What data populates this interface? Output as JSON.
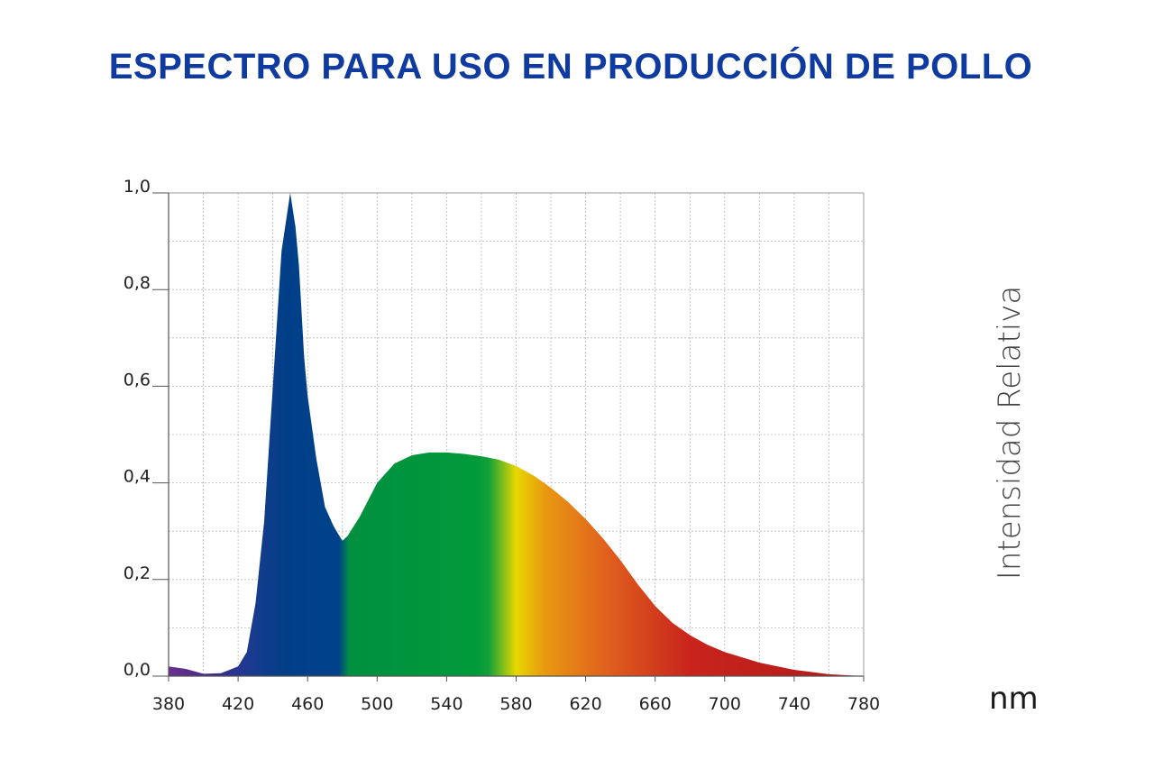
{
  "title": "ESPECTRO PARA USO EN PRODUCCIÓN DE POLLO",
  "chart_data": {
    "type": "area",
    "title": "ESPECTRO PARA USO EN PRODUCCIÓN DE POLLO",
    "xlabel": "nm",
    "ylabel": "Intensidad Relativa",
    "xlim": [
      380,
      780
    ],
    "ylim": [
      0,
      1.0
    ],
    "grid": true,
    "x_ticks": [
      380,
      420,
      460,
      500,
      540,
      580,
      620,
      660,
      700,
      740,
      780
    ],
    "y_ticks": [
      0.0,
      0.2,
      0.4,
      0.6,
      0.8,
      1.0
    ],
    "x_tick_labels": [
      "380",
      "420",
      "460",
      "500",
      "540",
      "580",
      "620",
      "660",
      "700",
      "740",
      "780"
    ],
    "y_tick_labels": [
      "0,0",
      "0,2",
      "0,4",
      "0,6",
      "0,8",
      "1,0"
    ],
    "series": [
      {
        "x": [
          380,
          390,
          400,
          410,
          420,
          425,
          430,
          435,
          440,
          445,
          450,
          453,
          455,
          458,
          460,
          465,
          470,
          475,
          480,
          483,
          490,
          500,
          510,
          520,
          530,
          540,
          550,
          560,
          570,
          580,
          590,
          600,
          610,
          620,
          630,
          640,
          650,
          660,
          670,
          680,
          690,
          700,
          720,
          740,
          760,
          780
        ],
        "values": [
          0.02,
          0.015,
          0.005,
          0.006,
          0.02,
          0.05,
          0.15,
          0.32,
          0.6,
          0.88,
          1.0,
          0.93,
          0.85,
          0.66,
          0.58,
          0.45,
          0.35,
          0.31,
          0.28,
          0.29,
          0.33,
          0.4,
          0.44,
          0.457,
          0.463,
          0.463,
          0.46,
          0.455,
          0.448,
          0.435,
          0.415,
          0.39,
          0.36,
          0.325,
          0.285,
          0.24,
          0.19,
          0.145,
          0.11,
          0.085,
          0.065,
          0.05,
          0.028,
          0.013,
          0.004,
          0.0
        ]
      }
    ],
    "gradient_colors": [
      "#6b2f8e",
      "#3b2c8c",
      "#1e3a8f",
      "#003f87",
      "#00428a",
      "#00428a",
      "#00903f",
      "#009a3a",
      "#0fa03a",
      "#e8d800",
      "#e89a10",
      "#e0601e",
      "#c8241c",
      "#b01a1a"
    ]
  }
}
